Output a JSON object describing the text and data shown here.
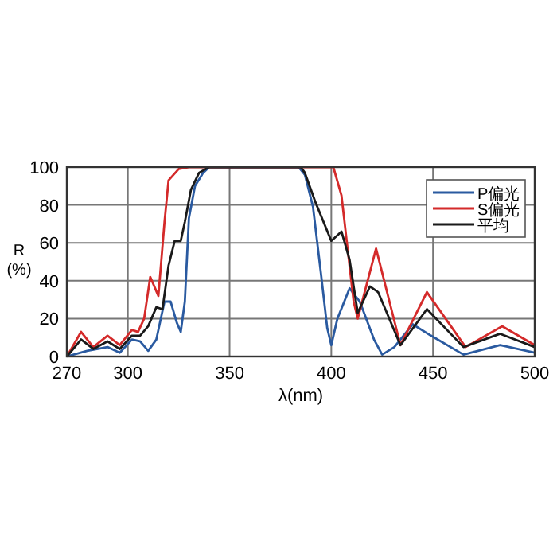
{
  "chart_data": {
    "type": "line",
    "xlabel": "λ(nm)",
    "ylabel": "R\n(%)",
    "xlim": [
      270,
      500
    ],
    "ylim": [
      0,
      100
    ],
    "xticks": [
      270,
      300,
      350,
      400,
      450,
      500
    ],
    "yticks": [
      0,
      20,
      40,
      60,
      80,
      100
    ],
    "grid": true,
    "legend": "top right",
    "marker": "none",
    "line_style": "solid",
    "series": [
      {
        "name": "P偏光",
        "color": "#2a5aa0",
        "x": [
          270,
          280,
          290,
          296,
          302,
          306,
          310,
          314,
          318,
          321,
          324,
          326,
          328,
          330,
          333,
          337,
          340,
          384,
          387,
          391,
          395,
          398,
          400,
          403,
          409,
          414,
          421,
          425,
          431,
          440,
          449,
          465,
          483,
          500
        ],
        "values": [
          0,
          3,
          5,
          2,
          9,
          8,
          3,
          9,
          29,
          29,
          18,
          13,
          29,
          73,
          90,
          97,
          100,
          100,
          96,
          79,
          43,
          15,
          6,
          20,
          36,
          29,
          9,
          1,
          5,
          17,
          11,
          1,
          6,
          2
        ]
      },
      {
        "name": "S偏光",
        "color": "#d42a2a",
        "x": [
          270,
          277,
          283,
          290,
          296,
          302,
          305,
          308,
          311,
          315,
          318,
          320,
          325,
          330,
          401,
          405,
          408,
          411,
          413,
          422,
          434,
          447,
          466,
          484,
          500
        ],
        "values": [
          0,
          13,
          5,
          11,
          6,
          14,
          13,
          20,
          42,
          32,
          71,
          93,
          99,
          100,
          100,
          85,
          57,
          29,
          20,
          57,
          6,
          34,
          5,
          16,
          6
        ]
      },
      {
        "name": "平均",
        "color": "#1a1a1a",
        "x": [
          270,
          277,
          283,
          290,
          296,
          302,
          306,
          310,
          314,
          317,
          320,
          323,
          326,
          328,
          331,
          335,
          340,
          385,
          387,
          392,
          400,
          405,
          409,
          413,
          419,
          423,
          434,
          447,
          465,
          483,
          500
        ],
        "values": [
          0,
          9,
          4,
          8,
          4,
          11,
          11,
          16,
          26,
          25,
          48,
          61,
          61,
          71,
          88,
          97,
          100,
          100,
          97,
          82,
          61,
          66,
          51,
          23,
          37,
          34,
          6,
          25,
          5,
          12,
          5
        ]
      }
    ]
  }
}
